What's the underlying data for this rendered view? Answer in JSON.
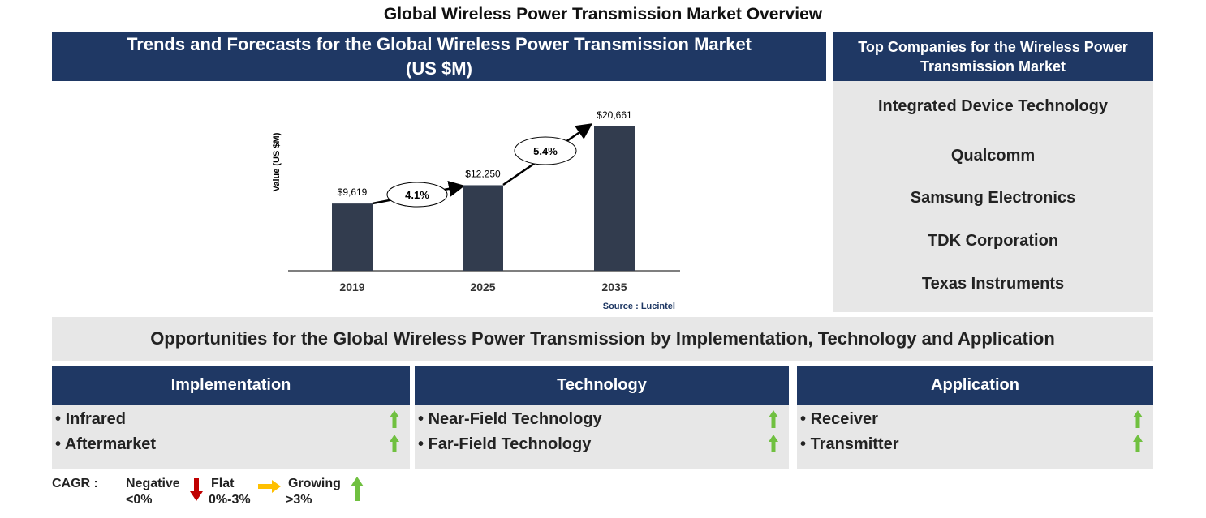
{
  "title": "Global Wireless Power Transmission Market Overview",
  "chart_panel": {
    "heading": "Trends and Forecasts for the Global Wireless Power Transmission Market (US $M)"
  },
  "chart_data": {
    "type": "bar",
    "y_label": "Value (US $M)",
    "categories": [
      "2019",
      "2025",
      "2035"
    ],
    "values": [
      9619,
      12250,
      20661
    ],
    "value_labels": [
      "$9,619",
      "$12,250",
      "$20,661"
    ],
    "color": "#323c4e",
    "cagr_labels": [
      "4.1%",
      "5.4%"
    ],
    "source": "Source : Lucintel"
  },
  "companies": {
    "heading": "Top Companies for the Wireless Power Transmission Market",
    "items": [
      "Integrated Device Technology",
      "Qualcomm",
      "Samsung Electronics",
      "TDK Corporation",
      "Texas Instruments"
    ]
  },
  "opportunities": {
    "heading": "Opportunities for the Global Wireless Power Transmission by Implementation, Technology and Application",
    "columns": [
      {
        "title": "Implementation",
        "items": [
          {
            "label": "Infrared",
            "trend": "growing"
          },
          {
            "label": "Aftermarket",
            "trend": "growing"
          }
        ]
      },
      {
        "title": "Technology",
        "items": [
          {
            "label": "Near-Field Technology",
            "trend": "growing"
          },
          {
            "label": "Far-Field Technology",
            "trend": "growing"
          }
        ]
      },
      {
        "title": "Application",
        "items": [
          {
            "label": "Receiver",
            "trend": "growing"
          },
          {
            "label": "Transmitter",
            "trend": "growing"
          }
        ]
      }
    ]
  },
  "legend": {
    "label": "CAGR :",
    "negative": "Negative",
    "negative_range": "<0%",
    "flat": "Flat",
    "flat_range": "0%-3%",
    "growing": "Growing",
    "growing_range": ">3%"
  }
}
